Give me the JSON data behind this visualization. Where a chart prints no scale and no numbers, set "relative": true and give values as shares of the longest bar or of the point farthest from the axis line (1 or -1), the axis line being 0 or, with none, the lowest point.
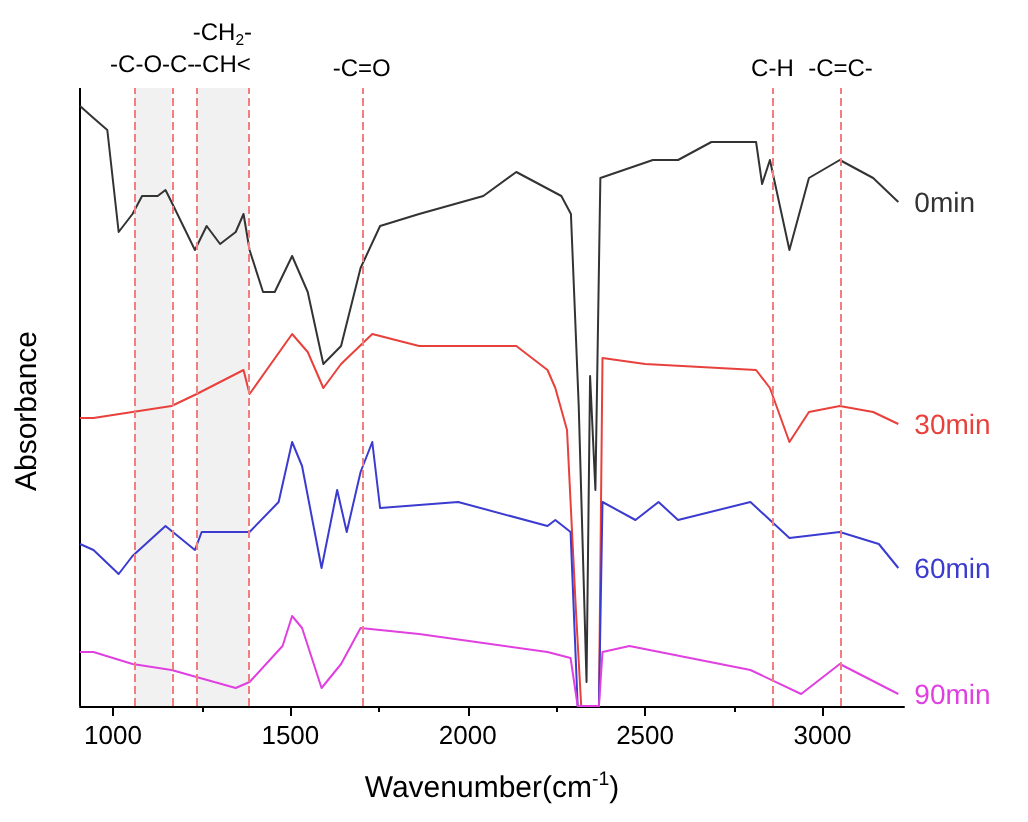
{
  "chart_data": {
    "type": "line",
    "relative": true,
    "xlabel": "Wavenumber(cm$^{-1}$)",
    "ylabel": "Absorbance",
    "xlim": [
      907,
      3230
    ],
    "xticks": [
      1000,
      1500,
      2000,
      2500,
      3000
    ],
    "series": [
      {
        "name": "0min",
        "color": "#333333",
        "x": [
          907,
          945,
          984,
          1016,
          1055,
          1082,
          1126,
          1148,
          1165,
          1231,
          1264,
          1302,
          1346,
          1368,
          1385,
          1423,
          1456,
          1505,
          1549,
          1593,
          1643,
          1698,
          1753,
          1863,
          2044,
          2137,
          2264,
          2291,
          2313,
          2335,
          2345,
          2360,
          2374,
          2522,
          2593,
          2687,
          2813,
          2830,
          2852,
          2907,
          2962,
          3049,
          3143,
          3214
        ],
        "values": [
          1.0,
          0.98,
          0.96,
          0.79,
          0.82,
          0.85,
          0.85,
          0.86,
          0.84,
          0.76,
          0.8,
          0.77,
          0.79,
          0.82,
          0.76,
          0.69,
          0.69,
          0.75,
          0.69,
          0.57,
          0.6,
          0.73,
          0.8,
          0.82,
          0.85,
          0.89,
          0.85,
          0.82,
          0.5,
          0.04,
          0.55,
          0.36,
          0.88,
          0.91,
          0.91,
          0.94,
          0.94,
          0.87,
          0.91,
          0.76,
          0.88,
          0.91,
          0.88,
          0.84
        ]
      },
      {
        "name": "30min",
        "color": "#e8413c",
        "x": [
          907,
          945,
          1055,
          1165,
          1236,
          1368,
          1385,
          1505,
          1549,
          1593,
          1643,
          1731,
          1863,
          2137,
          2225,
          2247,
          2280,
          2305,
          2320,
          2370,
          2380,
          2500,
          2813,
          2852,
          2907,
          2962,
          3049,
          3143,
          3214
        ],
        "values": [
          0.48,
          0.48,
          0.49,
          0.5,
          0.52,
          0.56,
          0.52,
          0.62,
          0.59,
          0.53,
          0.57,
          0.62,
          0.6,
          0.6,
          0.56,
          0.53,
          0.46,
          0.16,
          0,
          0,
          0.58,
          0.57,
          0.56,
          0.53,
          0.44,
          0.49,
          0.5,
          0.49,
          0.47
        ]
      },
      {
        "name": "60min",
        "color": "#3b3bd0",
        "x": [
          907,
          945,
          1016,
          1055,
          1148,
          1231,
          1250,
          1385,
          1467,
          1505,
          1533,
          1588,
          1632,
          1659,
          1698,
          1731,
          1753,
          1973,
          2225,
          2247,
          2290,
          2310,
          2370,
          2380,
          2473,
          2538,
          2593,
          2797,
          2907,
          3049,
          3159,
          3214
        ],
        "values": [
          0.27,
          0.26,
          0.22,
          0.25,
          0.3,
          0.26,
          0.29,
          0.29,
          0.34,
          0.44,
          0.4,
          0.23,
          0.36,
          0.29,
          0.39,
          0.44,
          0.33,
          0.34,
          0.3,
          0.31,
          0.29,
          0,
          0,
          0.34,
          0.31,
          0.34,
          0.31,
          0.34,
          0.28,
          0.29,
          0.27,
          0.23
        ]
      },
      {
        "name": "90min",
        "color": "#e040e0",
        "x": [
          907,
          945,
          1055,
          1165,
          1346,
          1385,
          1478,
          1505,
          1533,
          1588,
          1643,
          1698,
          1863,
          2225,
          2290,
          2310,
          2370,
          2380,
          2456,
          2797,
          2940,
          3049,
          3214
        ],
        "values": [
          0.09,
          0.09,
          0.07,
          0.06,
          0.03,
          0.04,
          0.1,
          0.15,
          0.13,
          0.03,
          0.07,
          0.13,
          0.12,
          0.09,
          0.08,
          0,
          0,
          0.09,
          0.1,
          0.06,
          0.02,
          0.07,
          0.02
        ]
      }
    ],
    "ref_lines": [
      {
        "axis": "x",
        "value": 1059,
        "color": "#f08080",
        "line_style": "dashed"
      },
      {
        "axis": "x",
        "value": 1165,
        "color": "#f08080",
        "line_style": "dashed"
      },
      {
        "axis": "x",
        "value": 1236,
        "color": "#f08080",
        "line_style": "dashed"
      },
      {
        "axis": "x",
        "value": 1381,
        "color": "#f08080",
        "line_style": "dashed"
      },
      {
        "axis": "x",
        "value": 1701,
        "color": "#f08080",
        "line_style": "dashed",
        "label": "-C=O"
      },
      {
        "axis": "x",
        "value": 2859,
        "color": "#f08080",
        "line_style": "dashed",
        "label": "C-H"
      },
      {
        "axis": "x",
        "value": 3051,
        "color": "#f08080",
        "line_style": "dashed",
        "label": "-C=C-"
      }
    ],
    "bands": [
      {
        "axis": "x",
        "from": 1059,
        "to": 1165,
        "color": "#d8d8d8",
        "label": "-C-O-C-"
      },
      {
        "axis": "x",
        "from": 1236,
        "to": 1381,
        "color": "#d8d8d8",
        "label": "-CH$_{2}$-\n-CH<"
      }
    ],
    "line_style": "solid",
    "marker": "none",
    "legend": false
  }
}
